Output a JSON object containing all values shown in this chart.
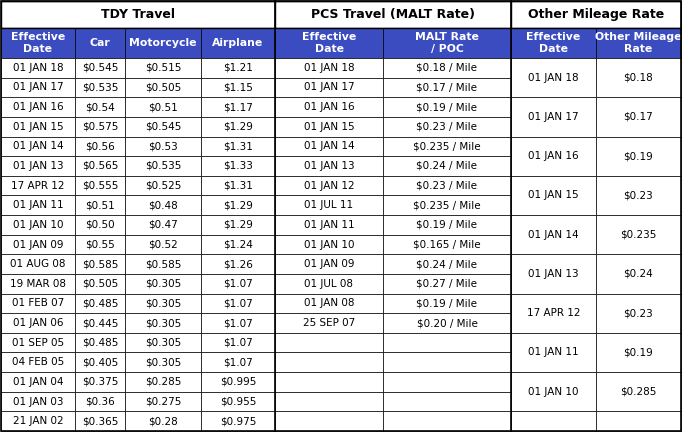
{
  "title1": "TDY Travel",
  "title2": "PCS Travel (MALT Rate)",
  "title3": "Other Mileage Rate",
  "tdy_headers": [
    "Effective\nDate",
    "Car",
    "Motorcycle",
    "Airplane"
  ],
  "pcs_headers": [
    "Effective\nDate",
    "MALT Rate\n/ POC"
  ],
  "other_headers": [
    "Effective\nDate",
    "Other Mileage\nRate"
  ],
  "tdy_data": [
    [
      "01 JAN 18",
      "$0.545",
      "$0.515",
      "$1.21"
    ],
    [
      "01 JAN 17",
      "$0.535",
      "$0.505",
      "$1.15"
    ],
    [
      "01 JAN 16",
      "$0.54",
      "$0.51",
      "$1.17"
    ],
    [
      "01 JAN 15",
      "$0.575",
      "$0.545",
      "$1.29"
    ],
    [
      "01 JAN 14",
      "$0.56",
      "$0.53",
      "$1.31"
    ],
    [
      "01 JAN 13",
      "$0.565",
      "$0.535",
      "$1.33"
    ],
    [
      "17 APR 12",
      "$0.555",
      "$0.525",
      "$1.31"
    ],
    [
      "01 JAN 11",
      "$0.51",
      "$0.48",
      "$1.29"
    ],
    [
      "01 JAN 10",
      "$0.50",
      "$0.47",
      "$1.29"
    ],
    [
      "01 JAN 09",
      "$0.55",
      "$0.52",
      "$1.24"
    ],
    [
      "01 AUG 08",
      "$0.585",
      "$0.585",
      "$1.26"
    ],
    [
      "19 MAR 08",
      "$0.505",
      "$0.305",
      "$1.07"
    ],
    [
      "01 FEB 07",
      "$0.485",
      "$0.305",
      "$1.07"
    ],
    [
      "01 JAN 06",
      "$0.445",
      "$0.305",
      "$1.07"
    ],
    [
      "01 SEP 05",
      "$0.485",
      "$0.305",
      "$1.07"
    ],
    [
      "04 FEB 05",
      "$0.405",
      "$0.305",
      "$1.07"
    ],
    [
      "01 JAN 04",
      "$0.375",
      "$0.285",
      "$0.995"
    ],
    [
      "01 JAN 03",
      "$0.36",
      "$0.275",
      "$0.955"
    ],
    [
      "21 JAN 02",
      "$0.365",
      "$0.28",
      "$0.975"
    ]
  ],
  "pcs_data": [
    [
      "01 JAN 18",
      "$0.18 / Mile"
    ],
    [
      "01 JAN 17",
      "$0.17 / Mile"
    ],
    [
      "01 JAN 16",
      "$0.19 / Mile"
    ],
    [
      "01 JAN 15",
      "$0.23 / Mile"
    ],
    [
      "01 JAN 14",
      "$0.235 / Mile"
    ],
    [
      "01 JAN 13",
      "$0.24 / Mile"
    ],
    [
      "01 JAN 12",
      "$0.23 / Mile"
    ],
    [
      "01 JUL 11",
      "$0.235 / Mile"
    ],
    [
      "01 JAN 11",
      "$0.19 / Mile"
    ],
    [
      "01 JAN 10",
      "$0.165 / Mile"
    ],
    [
      "01 JAN 09",
      "$0.24 / Mile"
    ],
    [
      "01 JUL 08",
      "$0.27 / Mile"
    ],
    [
      "01 JAN 08",
      "$0.19 / Mile"
    ],
    [
      "25 SEP 07",
      "$0.20 / Mile"
    ]
  ],
  "other_entries": [
    [
      "01 JAN 18",
      "$0.18"
    ],
    [
      "01 JAN 17",
      "$0.17"
    ],
    [
      "01 JAN 16",
      "$0.19"
    ],
    [
      "01 JAN 15",
      "$0.23"
    ],
    [
      "01 JAN 14",
      "$0.235"
    ],
    [
      "01 JAN 13",
      "$0.24"
    ],
    [
      "17 APR 12",
      "$0.23"
    ],
    [
      "01 JAN 11",
      "$0.19"
    ],
    [
      "01 JAN 10",
      "$0.285"
    ]
  ],
  "header_bg": "#3a4cc0",
  "header_fg": "#ffffff",
  "border_color": "#000000",
  "title_fontsize": 9,
  "header_fontsize": 7.8,
  "data_fontsize": 7.5,
  "fig_width": 6.82,
  "fig_height": 4.32,
  "dpi": 100
}
